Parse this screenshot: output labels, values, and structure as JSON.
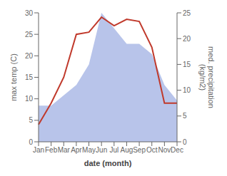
{
  "chart_data": {
    "type": "line",
    "categories": [
      "Jan",
      "Feb",
      "Mar",
      "Apr",
      "May",
      "Jun",
      "Jul",
      "Aug",
      "Sep",
      "Oct",
      "Nov",
      "Dec"
    ],
    "x_label": "date (month)",
    "y_label": "max temp (C)",
    "y2_label": "med. precipitation\n(kg/m2)",
    "series": [
      {
        "type": "area",
        "color": "#b8c4ea",
        "axis": "y2",
        "values": [
          7,
          7,
          9,
          11,
          15,
          25,
          22,
          19,
          19,
          17,
          11,
          8
        ]
      },
      {
        "type": "line",
        "color": "#c0392b",
        "values": [
          4,
          9,
          15,
          25,
          25.5,
          29,
          27,
          28.5,
          28,
          22,
          9,
          9
        ]
      }
    ],
    "ylim": [
      0,
      30
    ],
    "yticks": [
      0,
      5,
      10,
      15,
      20,
      25,
      30
    ],
    "y2lim": [
      0,
      25
    ],
    "y2ticks": [
      0,
      5,
      10,
      15,
      20,
      25
    ],
    "grid": false
  }
}
